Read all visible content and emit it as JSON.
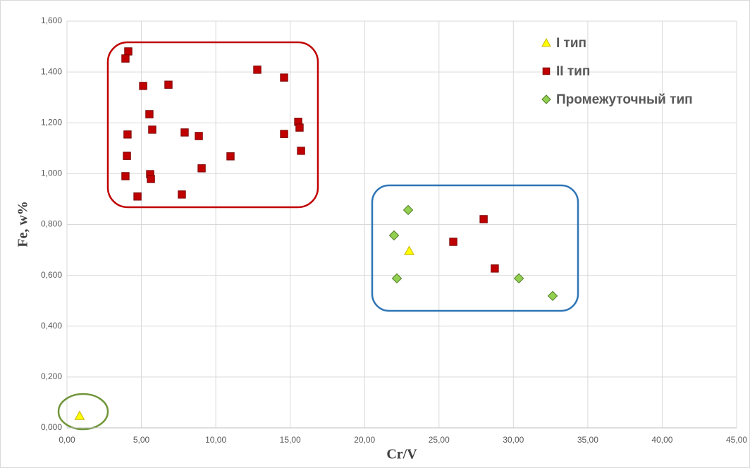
{
  "chart_data": {
    "type": "scatter",
    "x_label": "Cr/V",
    "y_label": "Fe, w%",
    "xlim": [
      0,
      45
    ],
    "xticks": [
      {
        "value": 0,
        "label": "0,00"
      },
      {
        "value": 5,
        "label": "5,00"
      },
      {
        "value": 10,
        "label": "10,00"
      },
      {
        "value": 15,
        "label": "15,00"
      },
      {
        "value": 20,
        "label": "20,00"
      },
      {
        "value": 25,
        "label": "25,00"
      },
      {
        "value": 30,
        "label": "30,00"
      },
      {
        "value": 35,
        "label": "35,00"
      },
      {
        "value": 40,
        "label": "40,00"
      },
      {
        "value": 45,
        "label": "45,00"
      }
    ],
    "ylim": [
      0,
      1.6
    ],
    "yticks": [
      {
        "value": 0,
        "label": "0,000"
      },
      {
        "value": 0.2,
        "label": "0,200"
      },
      {
        "value": 0.4,
        "label": "0,400"
      },
      {
        "value": 0.6,
        "label": "0,600"
      },
      {
        "value": 0.8,
        "label": "0,800"
      },
      {
        "value": 1.0,
        "label": "1,000"
      },
      {
        "value": 1.2,
        "label": "1,200"
      },
      {
        "value": 1.4,
        "label": "1,400"
      },
      {
        "value": 1.6,
        "label": "1,600"
      }
    ],
    "grid": true,
    "legend": "top-right",
    "series": [
      {
        "name": "I тип",
        "color": "#ffff00",
        "marker": "triangle",
        "x": [
          0.85,
          23.0
        ],
        "values": [
          0.047,
          0.696
        ]
      },
      {
        "name": "II тип",
        "color": "#c00000",
        "marker": "square",
        "x": [
          4.12,
          3.93,
          5.12,
          6.82,
          12.79,
          14.59,
          5.54,
          15.54,
          15.63,
          4.07,
          5.73,
          7.91,
          8.86,
          14.59,
          4.03,
          10.99,
          15.73,
          9.05,
          5.59,
          3.93,
          5.64,
          4.74,
          7.72,
          28.0,
          25.96,
          28.75
        ],
        "values": [
          1.481,
          1.453,
          1.345,
          1.35,
          1.409,
          1.378,
          1.234,
          1.204,
          1.181,
          1.154,
          1.173,
          1.162,
          1.148,
          1.156,
          1.07,
          1.068,
          1.09,
          1.021,
          0.998,
          0.99,
          0.979,
          0.91,
          0.918,
          0.821,
          0.732,
          0.627
        ]
      },
      {
        "name": "Промежуточный тип",
        "color": "#92d050",
        "marker": "diamond",
        "x": [
          22.93,
          21.98,
          22.17,
          30.37,
          32.64
        ],
        "values": [
          0.857,
          0.757,
          0.588,
          0.588,
          0.519
        ]
      }
    ]
  }
}
